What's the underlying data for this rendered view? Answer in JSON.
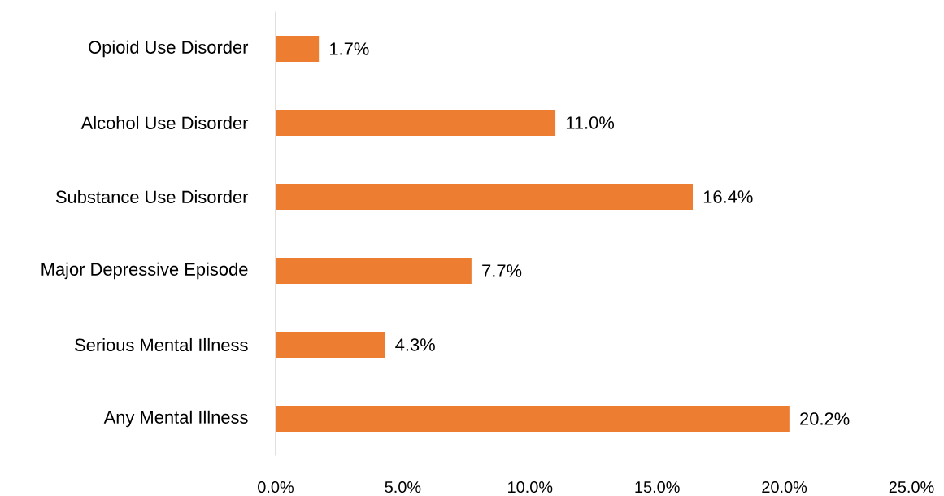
{
  "chart_data": {
    "type": "bar",
    "orientation": "horizontal",
    "categories": [
      "Opioid Use Disorder",
      "Alcohol Use Disorder",
      "Substance Use Disorder",
      "Major Depressive Episode",
      "Serious Mental Illness",
      "Any Mental Illness"
    ],
    "values": [
      1.7,
      11.0,
      16.4,
      7.7,
      4.3,
      20.2
    ],
    "value_labels": [
      "1.7%",
      "11.0%",
      "16.4%",
      "7.7%",
      "4.3%",
      "20.2%"
    ],
    "color": "#ed7d31",
    "xlim": [
      0,
      25
    ],
    "xticks": [
      {
        "value": 0,
        "label": "0.0%"
      },
      {
        "value": 5,
        "label": "5.0%"
      },
      {
        "value": 10,
        "label": "10.0%"
      },
      {
        "value": 15,
        "label": "15.0%"
      },
      {
        "value": 20,
        "label": "20.0%"
      },
      {
        "value": 25,
        "label": "25.0%"
      }
    ]
  }
}
